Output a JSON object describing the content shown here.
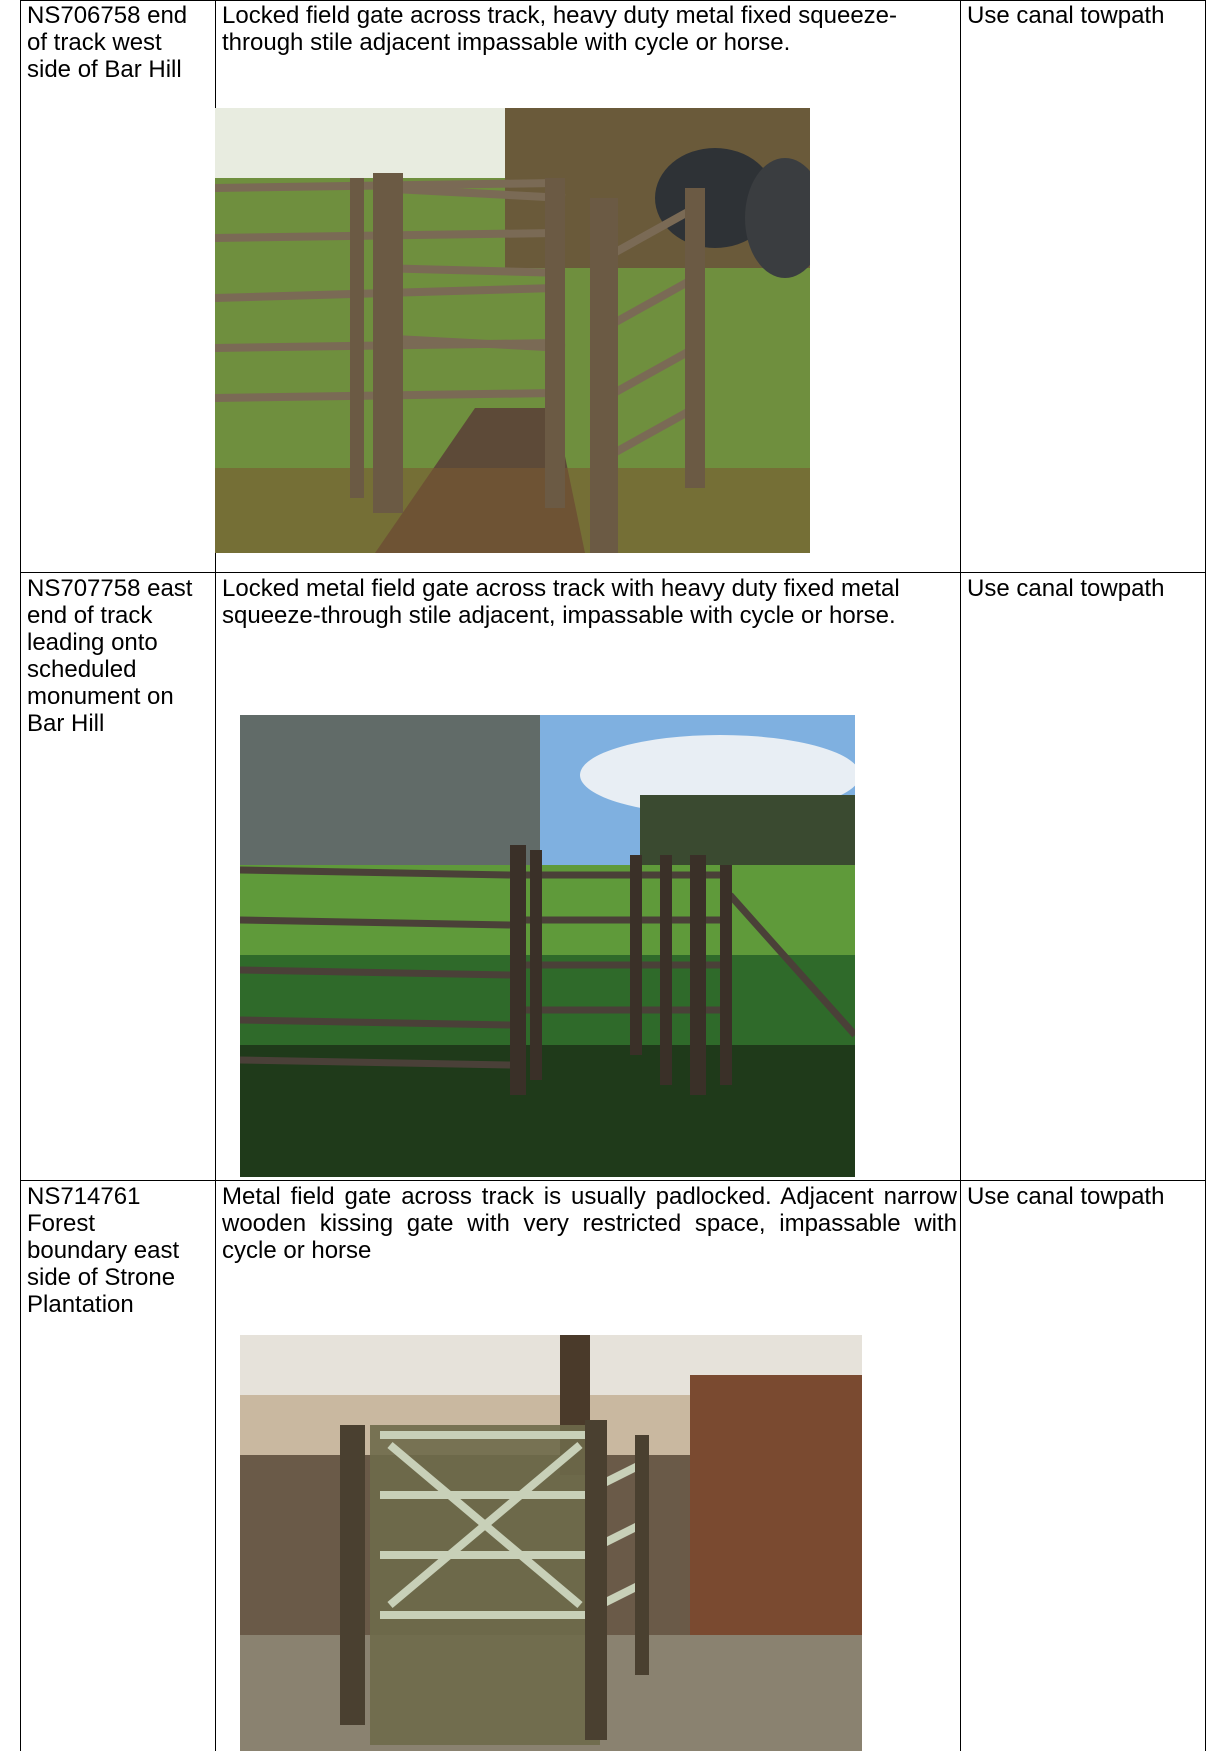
{
  "table": {
    "rows": [
      {
        "location": "NS706758 end of track west side of Bar Hill",
        "description": "Locked field gate  across track,  heavy duty metal fixed squeeze-through stile adjacent impassable with cycle or horse.",
        "action": "Use canal towpath"
      },
      {
        "location": "NS707758 east end of track leading onto scheduled monument on Bar Hill",
        "description": "Locked metal field gate across track with heavy duty fixed metal squeeze-through stile adjacent, impassable with cycle or horse.",
        "action": "Use canal towpath"
      },
      {
        "location": "NS714761 Forest boundary east side of Strone Plantation",
        "description": "Metal field gate across track is usually padlocked. Adjacent narrow wooden kissing gate with very restricted space, impassable with cycle or horse",
        "action": "Use canal towpath"
      }
    ]
  }
}
